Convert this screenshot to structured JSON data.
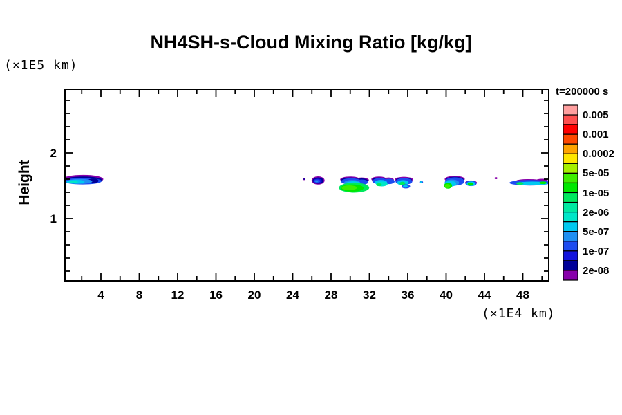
{
  "title": "NH4SH-s-Cloud Mixing Ratio [kg/kg]",
  "y_unit_label": "(×1E5 km)",
  "x_unit_label": "(×1E4 km)",
  "y_axis_label": "Height",
  "legend": {
    "title": "t=200000 s",
    "labels": [
      "0.005",
      "0.001",
      "0.0002",
      "5e-05",
      "1e-05",
      "2e-06",
      "5e-07",
      "1e-07",
      "2e-08"
    ],
    "cell_colors": [
      "#ff9f9f",
      "#ff4f4f",
      "#ff0000",
      "#ff4800",
      "#ffa300",
      "#ffe600",
      "#a6ef00",
      "#3fee00",
      "#00e800",
      "#00e85e",
      "#00e9a1",
      "#00e6c8",
      "#00c9f0",
      "#1e8ff2",
      "#1e4cf0",
      "#1414dc",
      "#000099",
      "#8800aa"
    ]
  },
  "axes": {
    "x_major_ticks": [
      4,
      8,
      12,
      16,
      20,
      24,
      28,
      32,
      36,
      40,
      44,
      48
    ],
    "x_minor_step": 2,
    "x_tick_min": 2,
    "x_tick_max": 50,
    "y_major_ticks": [
      1,
      2
    ],
    "y_minor_step": 0.2,
    "y_tick_min": 0.2,
    "y_tick_max": 2.8
  },
  "chart_data": {
    "type": "heatmap",
    "title": "NH4SH-s-Cloud Mixing Ratio [kg/kg]",
    "xlabel": "(×1E4 km)",
    "ylabel": "Height (×1E5 km)",
    "time_label": "t=200000 s",
    "x_range": [
      0.2,
      50.7
    ],
    "y_range": [
      0.04,
      2.97
    ],
    "contour_levels": [
      0.005,
      0.002,
      0.001,
      0.0005,
      0.0002,
      0.0001,
      5e-05,
      2e-05,
      1e-05,
      5e-06,
      2e-06,
      1e-06,
      5e-07,
      2e-07,
      1e-07,
      5e-08,
      2e-08
    ],
    "labeled_levels": [
      "0.005",
      "0.001",
      "0.0002",
      "5e-05",
      "1e-05",
      "2e-06",
      "5e-07",
      "1e-07",
      "2e-08"
    ],
    "legend_note": "colors from legend.cell_colors, 18 bands from >0.005 (pink) down to <2e-08 (purple)",
    "cloud_bands": [
      {
        "x_from": 0.2,
        "x_to": 4.2,
        "height": 1.56,
        "peak_level": "1e-06"
      },
      {
        "x_from": 25.1,
        "x_to": 25.3,
        "height": 1.6,
        "peak_level": "2e-08"
      },
      {
        "x_from": 25.9,
        "x_to": 27.3,
        "height": 1.58,
        "peak_level": "2e-07"
      },
      {
        "x_from": 28.8,
        "x_to": 32.2,
        "height": 1.5,
        "peak_level": "2e-05"
      },
      {
        "x_from": 32.2,
        "x_to": 34.6,
        "height": 1.55,
        "peak_level": "5e-06"
      },
      {
        "x_from": 34.6,
        "x_to": 36.7,
        "height": 1.54,
        "peak_level": "5e-06"
      },
      {
        "x_from": 37.3,
        "x_to": 37.5,
        "height": 1.55,
        "peak_level": "1e-06"
      },
      {
        "x_from": 39.7,
        "x_to": 42.2,
        "height": 1.54,
        "peak_level": "2e-05"
      },
      {
        "x_from": 42.0,
        "x_to": 43.2,
        "height": 1.53,
        "peak_level": "1e-05"
      },
      {
        "x_from": 45.1,
        "x_to": 45.3,
        "height": 1.61,
        "peak_level": "2e-08"
      },
      {
        "x_from": 46.6,
        "x_to": 50.8,
        "height": 1.55,
        "peak_level": "1e-05"
      }
    ],
    "cloud_render": [
      {
        "name": "band-left",
        "layers": [
          [
            17,
            2.15,
            1.6,
            2.1,
            0.065
          ],
          [
            16,
            2.15,
            1.585,
            2.02,
            0.055
          ],
          [
            14,
            2.1,
            1.57,
            1.98,
            0.05
          ],
          [
            16,
            3.2,
            1.575,
            0.55,
            0.035
          ],
          [
            13,
            1.8,
            1.565,
            1.3,
            0.038
          ],
          [
            12,
            1.35,
            1.56,
            0.95,
            0.03
          ],
          [
            11,
            1.15,
            1.555,
            0.45,
            0.018
          ]
        ]
      },
      {
        "name": "dot-25",
        "layers": [
          [
            17,
            25.2,
            1.6,
            0.12,
            0.015
          ],
          [
            16,
            25.2,
            1.6,
            0.07,
            0.009
          ]
        ]
      },
      {
        "name": "blob-26",
        "layers": [
          [
            17,
            26.65,
            1.58,
            0.68,
            0.062
          ],
          [
            16,
            26.65,
            1.578,
            0.58,
            0.048
          ],
          [
            15,
            26.6,
            1.572,
            0.45,
            0.035
          ],
          [
            14,
            26.55,
            1.57,
            0.32,
            0.025
          ],
          [
            13,
            26.5,
            1.568,
            0.15,
            0.014
          ]
        ]
      },
      {
        "name": "blob-30-green",
        "layers": [
          [
            17,
            30.0,
            1.595,
            1.05,
            0.045
          ],
          [
            17,
            31.2,
            1.585,
            0.75,
            0.04
          ],
          [
            16,
            30.0,
            1.585,
            0.95,
            0.04
          ],
          [
            16,
            31.2,
            1.575,
            0.65,
            0.035
          ],
          [
            14,
            30.1,
            1.565,
            1.05,
            0.048
          ],
          [
            14,
            31.2,
            1.555,
            0.68,
            0.04
          ],
          [
            13,
            30.2,
            1.545,
            0.85,
            0.042
          ],
          [
            12,
            30.3,
            1.53,
            0.78,
            0.038
          ],
          [
            11,
            30.4,
            1.515,
            0.72,
            0.035
          ],
          [
            10,
            30.45,
            1.5,
            0.85,
            0.05
          ],
          [
            9,
            30.4,
            1.47,
            1.58,
            0.075
          ],
          [
            8,
            30.2,
            1.465,
            1.2,
            0.055
          ],
          [
            7,
            29.9,
            1.47,
            0.8,
            0.035
          ]
        ]
      },
      {
        "name": "blob-33",
        "layers": [
          [
            17,
            33.0,
            1.6,
            0.8,
            0.04
          ],
          [
            17,
            34.0,
            1.59,
            0.55,
            0.035
          ],
          [
            16,
            33.0,
            1.59,
            0.72,
            0.035
          ],
          [
            14,
            33.1,
            1.57,
            0.8,
            0.045
          ],
          [
            14,
            34.05,
            1.565,
            0.58,
            0.04
          ],
          [
            12,
            33.2,
            1.55,
            0.65,
            0.038
          ],
          [
            11,
            33.3,
            1.525,
            0.6,
            0.035
          ],
          [
            9,
            33.0,
            1.515,
            0.3,
            0.022
          ]
        ]
      },
      {
        "name": "blob-35",
        "layers": [
          [
            17,
            35.6,
            1.595,
            0.95,
            0.04
          ],
          [
            16,
            35.6,
            1.585,
            0.85,
            0.035
          ],
          [
            14,
            35.6,
            1.565,
            0.88,
            0.05
          ],
          [
            12,
            35.5,
            1.545,
            0.6,
            0.04
          ],
          [
            9,
            35.45,
            1.535,
            0.3,
            0.025
          ],
          [
            14,
            35.8,
            1.49,
            0.45,
            0.032
          ],
          [
            12,
            35.75,
            1.49,
            0.25,
            0.02
          ]
        ]
      },
      {
        "name": "dot-37",
        "layers": [
          [
            14,
            37.4,
            1.555,
            0.2,
            0.018
          ],
          [
            12,
            37.4,
            1.555,
            0.12,
            0.012
          ]
        ]
      },
      {
        "name": "blob-41",
        "layers": [
          [
            17,
            40.9,
            1.6,
            1.05,
            0.05
          ],
          [
            16,
            40.9,
            1.59,
            0.95,
            0.045
          ],
          [
            14,
            40.9,
            1.565,
            1.02,
            0.062
          ],
          [
            13,
            40.6,
            1.545,
            0.75,
            0.05
          ],
          [
            12,
            40.45,
            1.53,
            0.6,
            0.045
          ],
          [
            8,
            40.2,
            1.5,
            0.42,
            0.045
          ],
          [
            7,
            40.15,
            1.495,
            0.28,
            0.03
          ]
        ]
      },
      {
        "name": "blob-42",
        "layers": [
          [
            17,
            42.6,
            1.545,
            0.62,
            0.035
          ],
          [
            14,
            42.6,
            1.535,
            0.58,
            0.042
          ],
          [
            12,
            42.6,
            1.53,
            0.45,
            0.035
          ],
          [
            8,
            42.55,
            1.525,
            0.3,
            0.025
          ]
        ]
      },
      {
        "name": "dot-45",
        "layers": [
          [
            17,
            45.2,
            1.615,
            0.14,
            0.015
          ]
        ]
      },
      {
        "name": "band-right",
        "layers": [
          [
            17,
            48.6,
            1.575,
            1.3,
            0.025
          ],
          [
            17,
            50.0,
            1.585,
            0.6,
            0.02
          ],
          [
            16,
            48.9,
            1.565,
            1.45,
            0.022
          ],
          [
            14,
            48.75,
            1.545,
            2.15,
            0.042
          ],
          [
            12,
            49.0,
            1.535,
            1.6,
            0.028
          ],
          [
            9,
            47.7,
            1.535,
            0.38,
            0.02
          ],
          [
            8,
            50.1,
            1.545,
            0.38,
            0.02
          ]
        ]
      }
    ]
  }
}
